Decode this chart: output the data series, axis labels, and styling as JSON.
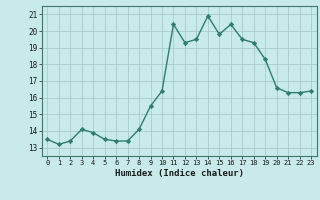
{
  "x": [
    0,
    1,
    2,
    3,
    4,
    5,
    6,
    7,
    8,
    9,
    10,
    11,
    12,
    13,
    14,
    15,
    16,
    17,
    18,
    19,
    20,
    21,
    22,
    23
  ],
  "y": [
    13.5,
    13.2,
    13.4,
    14.1,
    13.9,
    13.5,
    13.4,
    13.4,
    14.1,
    15.5,
    16.4,
    20.4,
    19.3,
    19.5,
    20.9,
    19.8,
    20.4,
    19.5,
    19.3,
    18.3,
    16.6,
    16.3,
    16.3,
    16.4
  ],
  "xlim": [
    -0.5,
    23.5
  ],
  "ylim": [
    12.5,
    21.5
  ],
  "yticks": [
    13,
    14,
    15,
    16,
    17,
    18,
    19,
    20,
    21
  ],
  "xticks": [
    0,
    1,
    2,
    3,
    4,
    5,
    6,
    7,
    8,
    9,
    10,
    11,
    12,
    13,
    14,
    15,
    16,
    17,
    18,
    19,
    20,
    21,
    22,
    23
  ],
  "xlabel": "Humidex (Indice chaleur)",
  "line_color": "#2e7d6e",
  "bg_color": "#c8eaea",
  "grid_color": "#a8cccc",
  "marker": "D",
  "marker_size": 2.2,
  "line_width": 1.0
}
